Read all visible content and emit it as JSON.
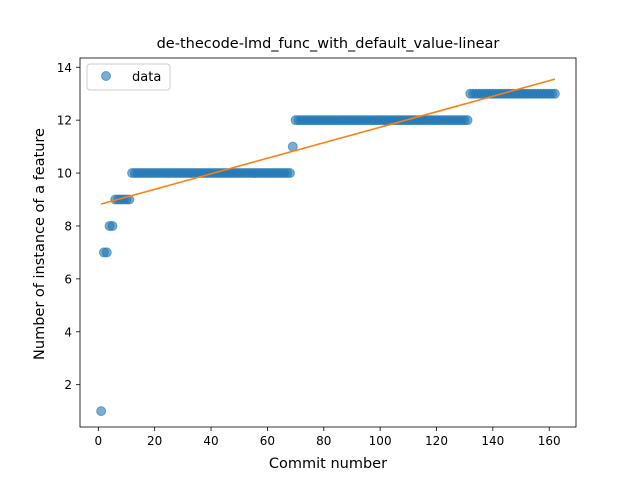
{
  "chart_data": {
    "type": "scatter",
    "title": "de-thecode-lmd_func_with_default_value-linear",
    "xlabel": "Commit number",
    "ylabel": "Number of instance of a feature",
    "xlim": [
      -6.5,
      169.5
    ],
    "ylim": [
      0.4,
      14.35
    ],
    "xticks": [
      0,
      20,
      40,
      60,
      80,
      100,
      120,
      140,
      160
    ],
    "yticks": [
      2,
      4,
      6,
      8,
      10,
      12,
      14
    ],
    "legend": {
      "position": "top-left",
      "entries": [
        {
          "label": "data"
        }
      ]
    },
    "colors": {
      "points": "#1f77b4",
      "fit": "#ff7f0e"
    },
    "series": [
      {
        "name": "data",
        "kind": "scatter",
        "runs": [
          {
            "x_start": 1,
            "x_end": 1,
            "y": 1
          },
          {
            "x_start": 2,
            "x_end": 3,
            "y": 7
          },
          {
            "x_start": 4,
            "x_end": 5,
            "y": 8
          },
          {
            "x_start": 6,
            "x_end": 11,
            "y": 9
          },
          {
            "x_start": 12,
            "x_end": 68,
            "y": 10
          },
          {
            "x_start": 69,
            "x_end": 69,
            "y": 11
          },
          {
            "x_start": 70,
            "x_end": 131,
            "y": 12
          },
          {
            "x_start": 132,
            "x_end": 162,
            "y": 13
          }
        ]
      },
      {
        "name": "linear fit",
        "kind": "line",
        "points": [
          {
            "x": 1,
            "y": 8.83
          },
          {
            "x": 162,
            "y": 13.55
          }
        ]
      }
    ]
  }
}
